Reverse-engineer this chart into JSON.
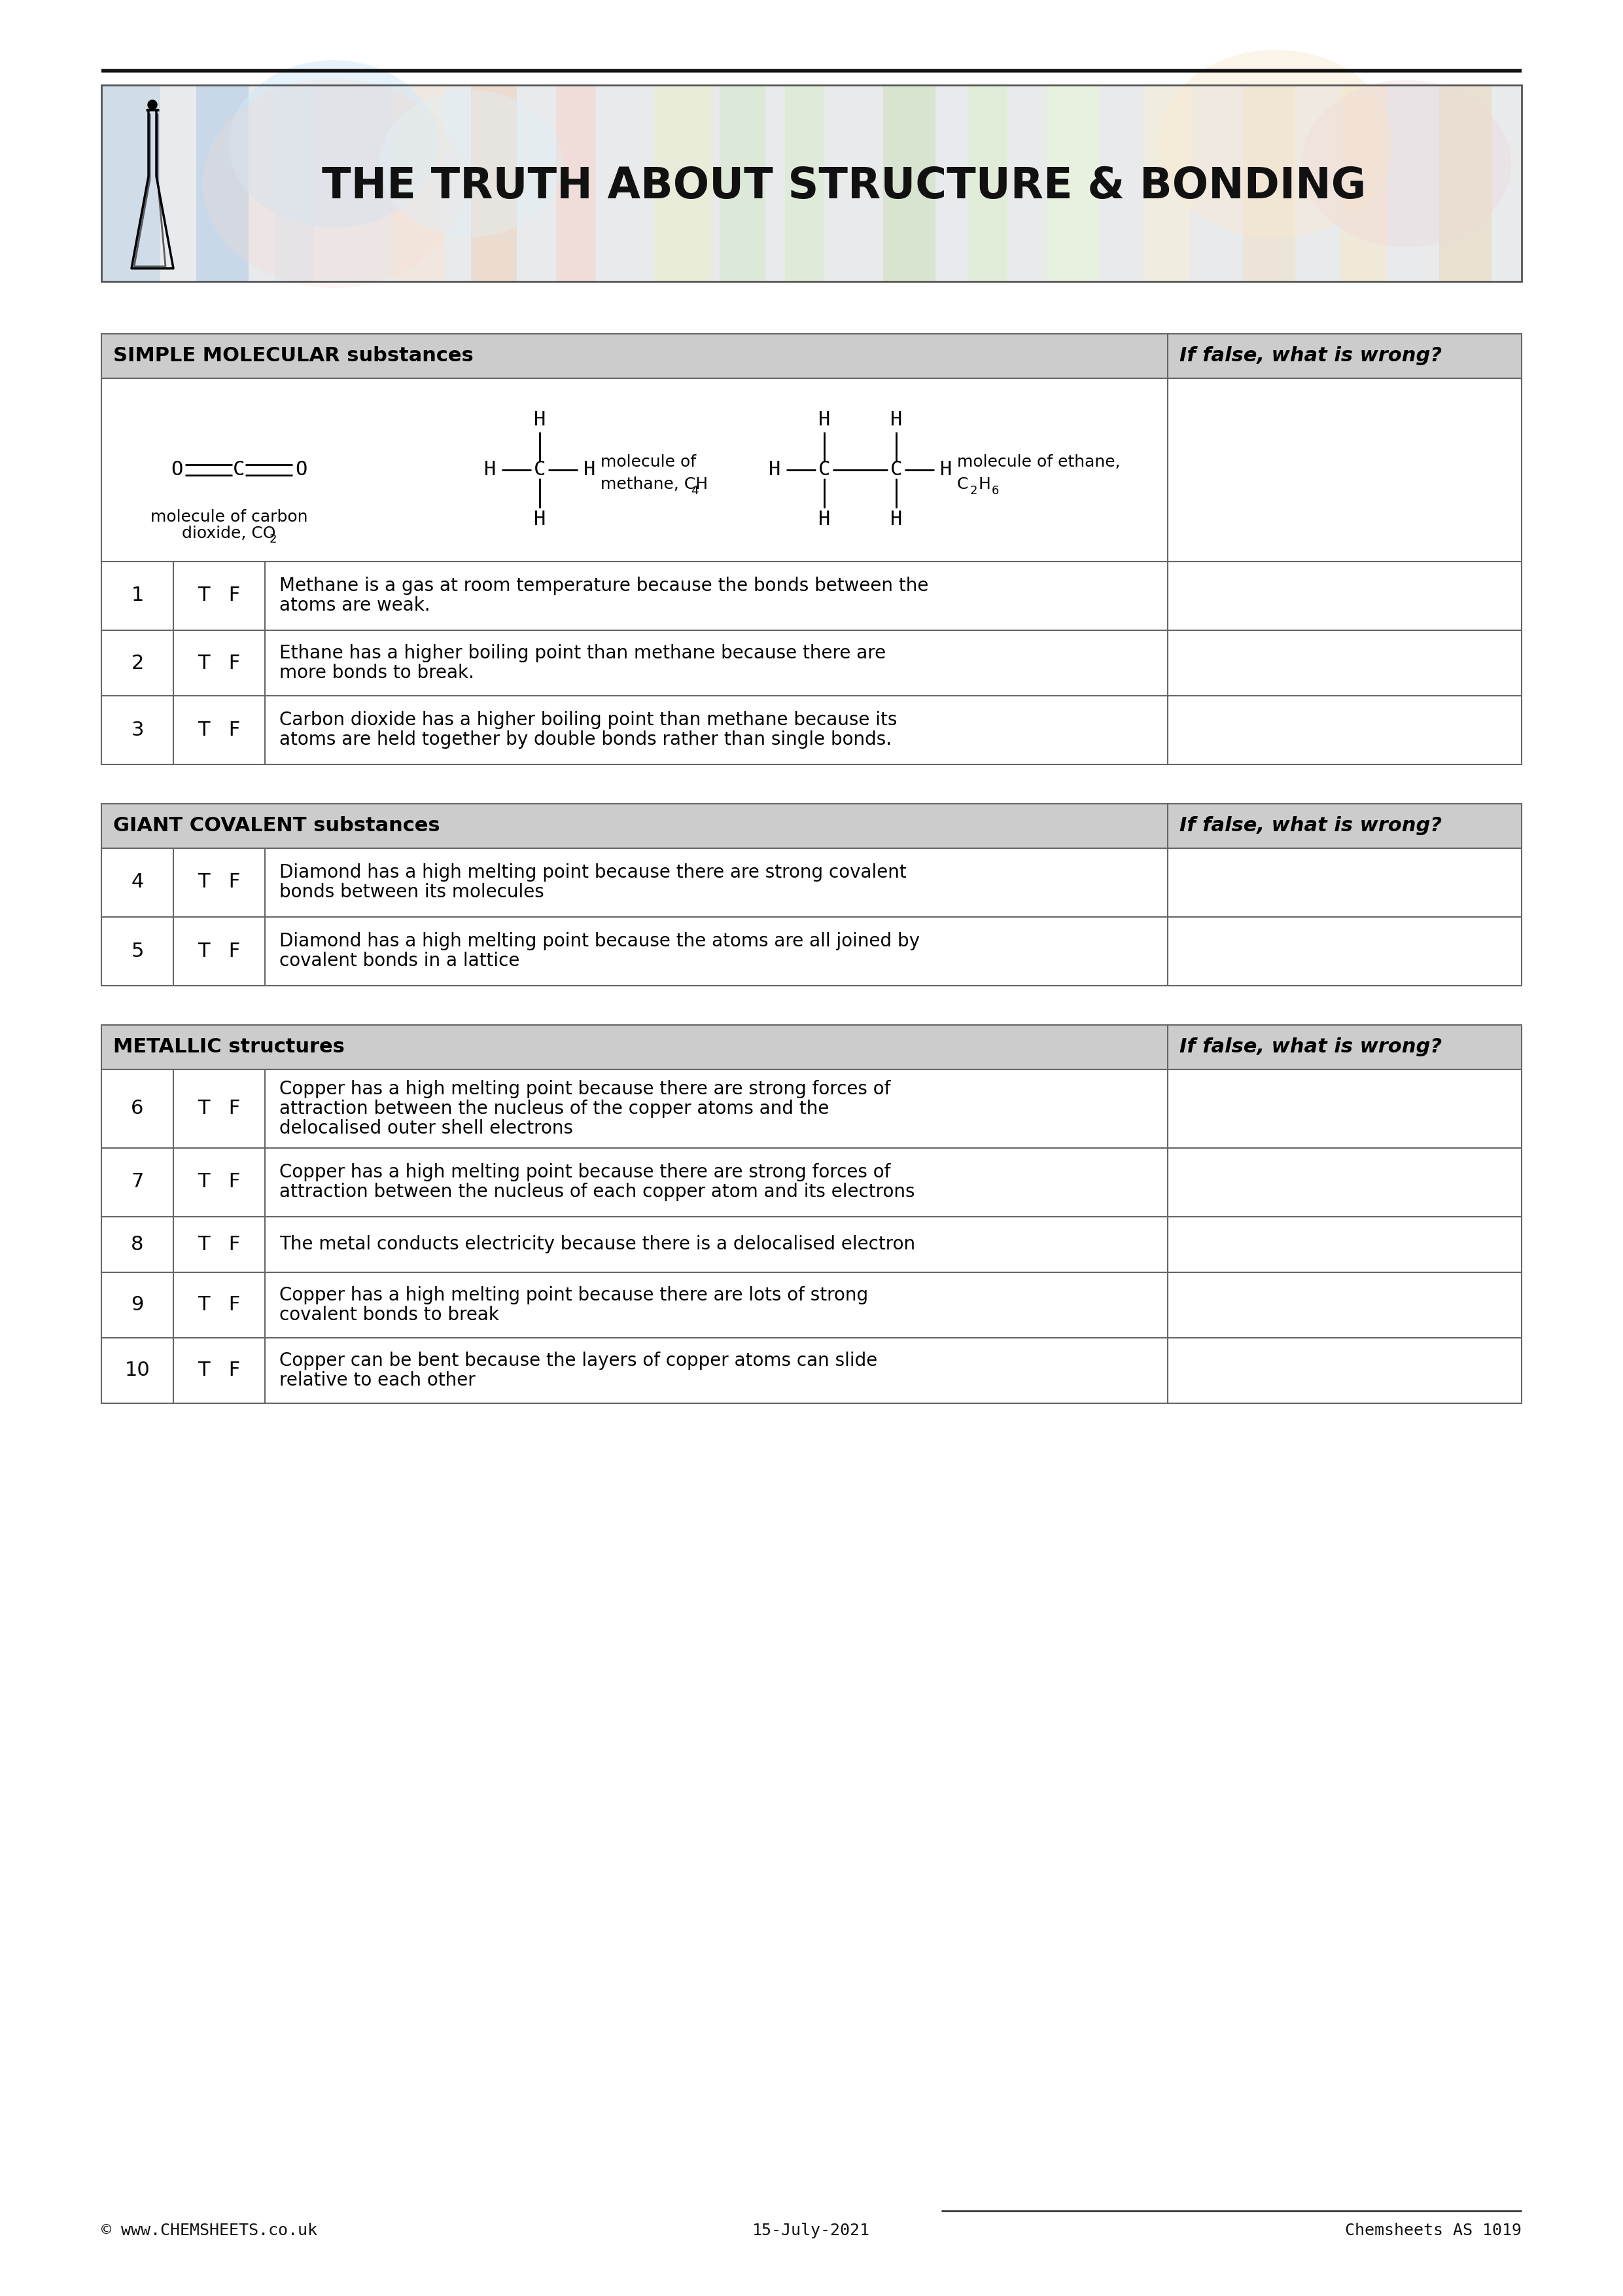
{
  "title": "THE TRUTH ABOUT STRUCTURE & BONDING",
  "page_bg": "#ffffff",
  "footer_left": "© www.CHEMSHEETS.co.uk",
  "footer_center": "15-July-2021",
  "footer_right": "Chemsheets AS 1019",
  "section1_title": "SIMPLE MOLECULAR substances",
  "section2_title": "GIANT COVALENT substances",
  "section3_title": "METALLIC structures",
  "col_header2": "If false, what is wrong?",
  "section_header_bg": "#cccccc",
  "table_border": "#666666",
  "questions": [
    {
      "num": "1",
      "tf": "T   F",
      "text": "Methane is a gas at room temperature because the bonds between the\natoms are weak."
    },
    {
      "num": "2",
      "tf": "T   F",
      "text": "Ethane has a higher boiling point than methane because there are\nmore bonds to break."
    },
    {
      "num": "3",
      "tf": "T   F",
      "text": "Carbon dioxide has a higher boiling point than methane because its\natoms are held together by double bonds rather than single bonds."
    },
    {
      "num": "4",
      "tf": "T   F",
      "text": "Diamond has a high melting point because there are strong covalent\nbonds between its molecules"
    },
    {
      "num": "5",
      "tf": "T   F",
      "text": "Diamond has a high melting point because the atoms are all joined by\ncovalent bonds in a lattice"
    },
    {
      "num": "6",
      "tf": "T   F",
      "text": "Copper has a high melting point because there are strong forces of\nattraction between the nucleus of the copper atoms and the\ndelocalised outer shell electrons"
    },
    {
      "num": "7",
      "tf": "T   F",
      "text": "Copper has a high melting point because there are strong forces of\nattraction between the nucleus of each copper atom and its electrons"
    },
    {
      "num": "8",
      "tf": "T   F",
      "text": "The metal conducts electricity because there is a delocalised electron"
    },
    {
      "num": "9",
      "tf": "T   F",
      "text": "Copper has a high melting point because there are lots of strong\ncovalent bonds to break"
    },
    {
      "num": "10",
      "tf": "T   F",
      "text": "Copper can be bent because the layers of copper atoms can slide\nrelative to each other"
    }
  ]
}
